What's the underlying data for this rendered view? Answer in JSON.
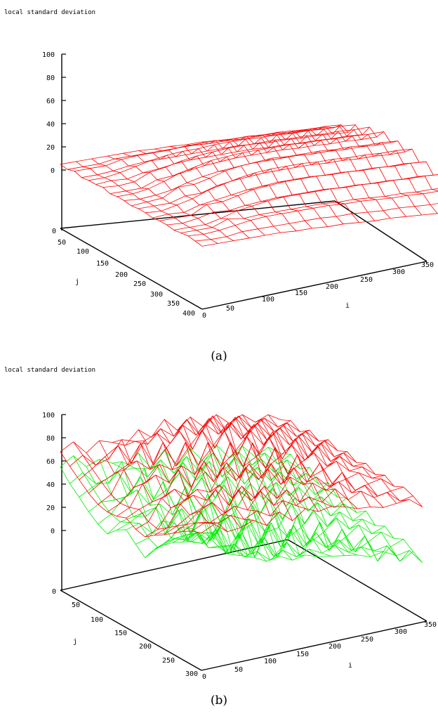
{
  "colors": {
    "top_surface": "#ff0000",
    "bottom_surface": "#00ee00",
    "axes": "#000000"
  },
  "chart_data": [
    {
      "type": "surface3d",
      "panel": "a",
      "title": "local standard deviation",
      "caption": "(a)",
      "xlabel": "i",
      "ylabel": "j",
      "zlabel": "",
      "xlim": [
        0,
        350
      ],
      "ylim": [
        0,
        400
      ],
      "zlim": [
        0,
        100
      ],
      "x_ticks": [
        "0",
        "50",
        "100",
        "150",
        "200",
        "250",
        "300",
        "350"
      ],
      "y_ticks": [
        "0",
        "50",
        "100",
        "150",
        "200",
        "250",
        "300",
        "350",
        "400"
      ],
      "z_ticks": [
        "0",
        "20",
        "40",
        "60",
        "80",
        "100"
      ],
      "grid_i": [
        0,
        20,
        40,
        60,
        80,
        100,
        120,
        140,
        160,
        180,
        200,
        220,
        240,
        260,
        280,
        300,
        320,
        340
      ],
      "grid_j": [
        0,
        20,
        40,
        60,
        80,
        100,
        120,
        140,
        160,
        180,
        200,
        220,
        240,
        260,
        280,
        300,
        320,
        340,
        360,
        380,
        400
      ],
      "z_values": [
        [
          5,
          4,
          6,
          4,
          5,
          5,
          6,
          4,
          5,
          5,
          4,
          5,
          5,
          4,
          5,
          5,
          4,
          5,
          6,
          5,
          4
        ],
        [
          6,
          5,
          7,
          5,
          6,
          7,
          6,
          5,
          6,
          5,
          6,
          6,
          5,
          6,
          6,
          5,
          5,
          6,
          6,
          5,
          5
        ],
        [
          7,
          6,
          8,
          7,
          9,
          7,
          8,
          6,
          9,
          7,
          8,
          7,
          9,
          6,
          7,
          8,
          6,
          7,
          8,
          6,
          6
        ],
        [
          8,
          9,
          12,
          10,
          13,
          11,
          15,
          12,
          14,
          10,
          16,
          12,
          13,
          11,
          15,
          12,
          10,
          13,
          11,
          9,
          7
        ],
        [
          9,
          10,
          14,
          12,
          17,
          13,
          18,
          14,
          20,
          15,
          17,
          13,
          19,
          14,
          16,
          12,
          15,
          12,
          14,
          10,
          8
        ],
        [
          10,
          11,
          15,
          13,
          20,
          16,
          22,
          17,
          24,
          19,
          21,
          18,
          23,
          17,
          20,
          15,
          18,
          14,
          16,
          11,
          9
        ],
        [
          10,
          12,
          16,
          14,
          22,
          18,
          25,
          20,
          28,
          22,
          26,
          21,
          27,
          20,
          24,
          17,
          21,
          15,
          17,
          12,
          9
        ],
        [
          11,
          13,
          18,
          15,
          23,
          19,
          27,
          22,
          30,
          24,
          29,
          23,
          30,
          22,
          26,
          19,
          23,
          16,
          18,
          13,
          10
        ],
        [
          11,
          14,
          19,
          16,
          25,
          20,
          29,
          24,
          32,
          26,
          31,
          25,
          32,
          24,
          28,
          20,
          24,
          17,
          19,
          14,
          10
        ],
        [
          12,
          14,
          20,
          17,
          26,
          21,
          30,
          25,
          33,
          27,
          33,
          26,
          33,
          25,
          29,
          21,
          25,
          18,
          20,
          14,
          11
        ],
        [
          12,
          15,
          20,
          18,
          27,
          22,
          31,
          26,
          34,
          28,
          33,
          27,
          34,
          26,
          30,
          22,
          26,
          18,
          20,
          15,
          11
        ],
        [
          12,
          15,
          21,
          18,
          27,
          22,
          32,
          27,
          35,
          29,
          34,
          28,
          34,
          26,
          30,
          22,
          26,
          19,
          21,
          15,
          11
        ],
        [
          13,
          16,
          21,
          18,
          28,
          23,
          32,
          27,
          35,
          29,
          35,
          28,
          35,
          27,
          31,
          23,
          27,
          19,
          21,
          15,
          12
        ],
        [
          13,
          16,
          22,
          19,
          28,
          23,
          33,
          28,
          36,
          30,
          35,
          29,
          35,
          27,
          31,
          23,
          27,
          19,
          21,
          16,
          12
        ],
        [
          13,
          16,
          22,
          19,
          29,
          24,
          33,
          28,
          36,
          30,
          36,
          29,
          36,
          28,
          32,
          24,
          28,
          20,
          22,
          16,
          12
        ],
        [
          13,
          17,
          22,
          20,
          29,
          24,
          34,
          29,
          37,
          31,
          36,
          30,
          36,
          28,
          32,
          24,
          28,
          20,
          22,
          16,
          12
        ],
        [
          14,
          17,
          23,
          20,
          30,
          25,
          34,
          29,
          37,
          31,
          37,
          30,
          37,
          29,
          33,
          25,
          29,
          21,
          23,
          17,
          13
        ],
        [
          14,
          17,
          23,
          20,
          30,
          25,
          35,
          30,
          38,
          32,
          37,
          31,
          37,
          29,
          33,
          25,
          29,
          21,
          23,
          17,
          13
        ]
      ]
    },
    {
      "type": "surface3d",
      "panel": "b",
      "title": "local standard deviation",
      "caption": "(b)",
      "xlabel": "i",
      "ylabel": "j",
      "zlabel": "",
      "xlim": [
        0,
        350
      ],
      "ylim": [
        0,
        300
      ],
      "zlim": [
        0,
        100
      ],
      "x_ticks": [
        "0",
        "50",
        "100",
        "150",
        "200",
        "250",
        "300",
        "350"
      ],
      "y_ticks": [
        "0",
        "50",
        "100",
        "150",
        "200",
        "250",
        "300"
      ],
      "z_ticks": [
        "0",
        "20",
        "40",
        "60",
        "80",
        "100"
      ],
      "grid_i": [
        0,
        20,
        40,
        60,
        80,
        100,
        120,
        140,
        160,
        180,
        200,
        220,
        240,
        260,
        280,
        300,
        320,
        340
      ],
      "grid_j": [
        0,
        20,
        40,
        60,
        80,
        100,
        120,
        140,
        160,
        180,
        200,
        220,
        240,
        260,
        280,
        300
      ],
      "z_values": [
        [
          68,
          60,
          53,
          46,
          41,
          39,
          40,
          43,
          38,
          36,
          42,
          47,
          53,
          59,
          64,
          67
        ],
        [
          74,
          67,
          60,
          53,
          47,
          44,
          45,
          48,
          42,
          40,
          46,
          52,
          58,
          64,
          69,
          72
        ],
        [
          62,
          56,
          68,
          58,
          66,
          55,
          63,
          52,
          60,
          56,
          64,
          59,
          67,
          61,
          66,
          63
        ],
        [
          70,
          59,
          75,
          63,
          71,
          57,
          68,
          54,
          65,
          60,
          69,
          63,
          72,
          66,
          70,
          64
        ],
        [
          66,
          73,
          57,
          79,
          61,
          70,
          59,
          75,
          56,
          67,
          62,
          76,
          60,
          71,
          64,
          68
        ],
        [
          61,
          69,
          74,
          58,
          82,
          63,
          71,
          57,
          79,
          62,
          73,
          60,
          78,
          65,
          69,
          61
        ],
        [
          72,
          64,
          78,
          70,
          59,
          84,
          61,
          77,
          64,
          81,
          59,
          74,
          66,
          79,
          62,
          70
        ],
        [
          63,
          75,
          67,
          82,
          73,
          62,
          86,
          60,
          78,
          67,
          83,
          61,
          76,
          64,
          73,
          60
        ],
        [
          76,
          66,
          80,
          64,
          85,
          74,
          63,
          88,
          62,
          79,
          70,
          84,
          63,
          75,
          66,
          68
        ],
        [
          64,
          78,
          69,
          83,
          67,
          87,
          72,
          65,
          90,
          64,
          81,
          68,
          79,
          62,
          71,
          63
        ],
        [
          73,
          62,
          81,
          72,
          86,
          63,
          84,
          71,
          66,
          88,
          62,
          80,
          70,
          76,
          64,
          65
        ],
        [
          62,
          76,
          65,
          79,
          70,
          82,
          66,
          85,
          72,
          63,
          84,
          65,
          74,
          67,
          73,
          62
        ],
        [
          70,
          61,
          77,
          63,
          80,
          67,
          83,
          64,
          81,
          70,
          62,
          79,
          63,
          72,
          61,
          58
        ],
        [
          60,
          71,
          62,
          74,
          64,
          76,
          62,
          79,
          65,
          76,
          66,
          58,
          73,
          60,
          66,
          57
        ],
        [
          65,
          58,
          70,
          60,
          72,
          62,
          74,
          60,
          75,
          62,
          71,
          60,
          55,
          64,
          58,
          54
        ],
        [
          56,
          64,
          57,
          67,
          58,
          69,
          58,
          70,
          59,
          68,
          60,
          63,
          58,
          52,
          60,
          55
        ],
        [
          60,
          54,
          62,
          55,
          64,
          56,
          65,
          56,
          64,
          57,
          61,
          56,
          60,
          54,
          50,
          56
        ],
        [
          53,
          57,
          52,
          58,
          53,
          59,
          54,
          58,
          53,
          57,
          52,
          56,
          51,
          55,
          52,
          47
        ]
      ],
      "underside_z_values": [
        [
          55,
          45,
          38,
          30,
          24,
          20,
          28,
          33,
          25,
          18,
          30,
          38,
          45,
          50,
          55,
          58
        ],
        [
          62,
          52,
          44,
          36,
          30,
          28,
          32,
          36,
          28,
          24,
          34,
          42,
          49,
          55,
          60,
          64
        ],
        [
          50,
          40,
          48,
          35,
          42,
          30,
          38,
          25,
          40,
          30,
          44,
          36,
          48,
          40,
          46,
          44
        ],
        [
          54,
          38,
          52,
          36,
          46,
          28,
          40,
          22,
          36,
          26,
          40,
          32,
          46,
          38,
          44,
          40
        ],
        [
          48,
          54,
          32,
          50,
          30,
          36,
          20,
          40,
          18,
          30,
          24,
          42,
          26,
          38,
          32,
          36
        ],
        [
          40,
          46,
          50,
          28,
          48,
          24,
          34,
          16,
          42,
          20,
          36,
          18,
          40,
          26,
          34,
          30
        ],
        [
          52,
          36,
          50,
          34,
          22,
          46,
          18,
          38,
          14,
          40,
          12,
          34,
          20,
          38,
          24,
          32
        ],
        [
          36,
          48,
          32,
          46,
          30,
          18,
          42,
          12,
          34,
          16,
          38,
          10,
          32,
          20,
          30,
          26
        ],
        [
          50,
          34,
          48,
          28,
          44,
          26,
          14,
          40,
          10,
          32,
          14,
          36,
          12,
          30,
          22,
          28
        ],
        [
          34,
          46,
          30,
          42,
          24,
          40,
          20,
          10,
          36,
          8,
          30,
          14,
          34,
          16,
          26,
          24
        ],
        [
          46,
          30,
          44,
          26,
          40,
          18,
          36,
          16,
          10,
          34,
          6,
          30,
          16,
          28,
          20,
          22
        ],
        [
          32,
          44,
          28,
          40,
          22,
          36,
          14,
          32,
          12,
          8,
          32,
          10,
          26,
          18,
          24,
          20
        ],
        [
          44,
          28,
          42,
          24,
          38,
          20,
          34,
          12,
          30,
          14,
          6,
          28,
          8,
          22,
          16,
          18
        ],
        [
          30,
          40,
          26,
          36,
          22,
          32,
          16,
          28,
          10,
          26,
          12,
          4,
          24,
          10,
          18,
          14
        ],
        [
          38,
          26,
          36,
          22,
          34,
          18,
          30,
          14,
          26,
          10,
          22,
          10,
          2,
          20,
          12,
          16
        ],
        [
          26,
          34,
          22,
          32,
          20,
          28,
          16,
          24,
          12,
          20,
          10,
          18,
          8,
          -4,
          14,
          10
        ],
        [
          32,
          22,
          30,
          18,
          28,
          14,
          24,
          12,
          20,
          10,
          16,
          8,
          14,
          6,
          -2,
          12
        ],
        [
          24,
          28,
          20,
          26,
          16,
          22,
          14,
          18,
          10,
          16,
          8,
          12,
          6,
          10,
          4,
          -1
        ]
      ]
    }
  ]
}
